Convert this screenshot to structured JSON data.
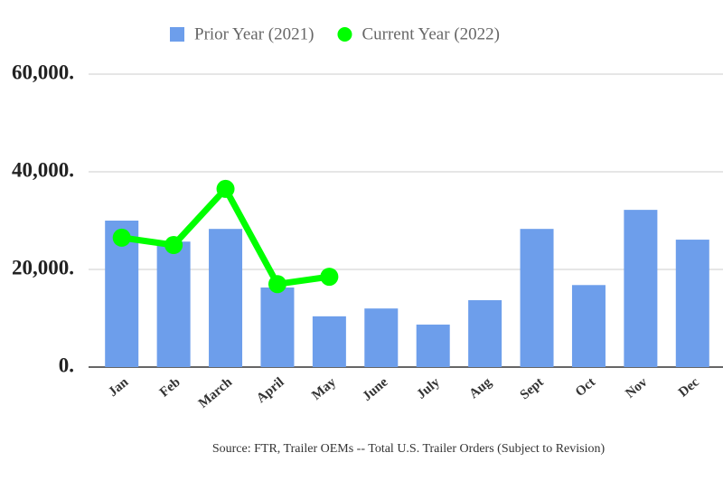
{
  "chart_data": {
    "type": "bar",
    "categories": [
      "Jan",
      "Feb",
      "March",
      "April",
      "May",
      "June",
      "July",
      "Aug",
      "Sept",
      "Oct",
      "Nov",
      "Dec"
    ],
    "series": [
      {
        "name": "Prior Year (2021)",
        "color": "#6d9eeb",
        "type": "bar",
        "values": [
          30000,
          25700,
          28300,
          16300,
          10400,
          12000,
          8700,
          13700,
          28300,
          16800,
          32200,
          26100
        ]
      },
      {
        "name": "Current Year (2022)",
        "color": "#00ff00",
        "type": "line",
        "values": [
          26500,
          25000,
          36500,
          17000,
          18500,
          null,
          null,
          null,
          null,
          null,
          null,
          null
        ]
      }
    ],
    "ylim": [
      0,
      60000
    ],
    "yticks": [
      {
        "value": 0,
        "label": "0."
      },
      {
        "value": 20000,
        "label": "20,000."
      },
      {
        "value": 40000,
        "label": "40,000."
      },
      {
        "value": 60000,
        "label": "60,000."
      }
    ],
    "grid": true,
    "legend": "top",
    "source": "Source: FTR, Trailer OEMs -- Total U.S. Trailer Orders (Subject to Revision)"
  }
}
